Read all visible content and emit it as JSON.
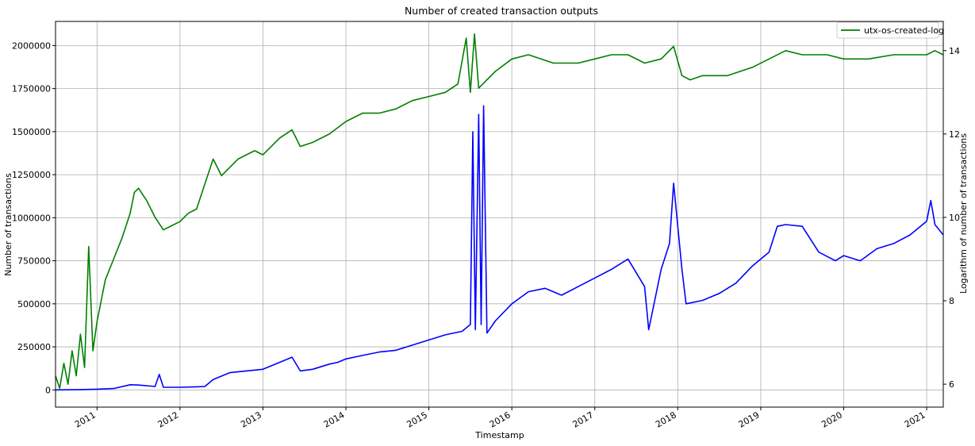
{
  "chart_data": {
    "type": "line",
    "title": "Number of created transaction outputs",
    "xlabel": "Timestamp",
    "ylabel": "Number of transactions",
    "ylabel_right": "Logarithm of number of transactions",
    "x_ticks": [
      "2011",
      "2012",
      "2013",
      "2014",
      "2015",
      "2016",
      "2017",
      "2018",
      "2019",
      "2020",
      "2021"
    ],
    "x_range": [
      2010.5,
      2021.2
    ],
    "y_left_ticks": [
      0,
      250000,
      500000,
      750000,
      1000000,
      1250000,
      1500000,
      1750000,
      2000000
    ],
    "y_left_range": [
      -100000,
      2140000
    ],
    "y_right_ticks": [
      6,
      8,
      10,
      12,
      14
    ],
    "y_right_range": [
      5.45,
      14.7
    ],
    "grid": true,
    "legend_position": "top-right",
    "series": [
      {
        "legend_label": "utx-os-created-log",
        "axis": "right",
        "color": "#008000",
        "x": [
          2010.5,
          2010.55,
          2010.6,
          2010.65,
          2010.7,
          2010.75,
          2010.8,
          2010.85,
          2010.9,
          2010.95,
          2011.0,
          2011.1,
          2011.2,
          2011.3,
          2011.4,
          2011.45,
          2011.5,
          2011.6,
          2011.7,
          2011.8,
          2011.9,
          2012.0,
          2012.1,
          2012.2,
          2012.3,
          2012.4,
          2012.5,
          2012.7,
          2012.9,
          2013.0,
          2013.2,
          2013.35,
          2013.45,
          2013.6,
          2013.8,
          2014.0,
          2014.2,
          2014.4,
          2014.6,
          2014.8,
          2015.0,
          2015.2,
          2015.35,
          2015.45,
          2015.5,
          2015.55,
          2015.6,
          2015.65,
          2015.8,
          2016.0,
          2016.2,
          2016.5,
          2016.8,
          2017.0,
          2017.2,
          2017.4,
          2017.6,
          2017.8,
          2017.95,
          2018.05,
          2018.15,
          2018.3,
          2018.6,
          2018.9,
          2019.1,
          2019.3,
          2019.5,
          2019.8,
          2020.0,
          2020.3,
          2020.6,
          2020.9,
          2021.0,
          2021.1,
          2021.2
        ],
        "y": [
          6.2,
          5.9,
          6.5,
          6.0,
          6.8,
          6.2,
          7.2,
          6.4,
          9.3,
          6.8,
          7.5,
          8.5,
          9.0,
          9.5,
          10.1,
          10.6,
          10.7,
          10.4,
          10.0,
          9.7,
          9.8,
          9.9,
          10.1,
          10.2,
          10.8,
          11.4,
          11.0,
          11.4,
          11.6,
          11.5,
          11.9,
          12.1,
          11.7,
          11.8,
          12.0,
          12.3,
          12.5,
          12.5,
          12.6,
          12.8,
          12.9,
          13.0,
          13.2,
          14.3,
          13.0,
          14.4,
          13.1,
          13.2,
          13.5,
          13.8,
          13.9,
          13.7,
          13.7,
          13.8,
          13.9,
          13.9,
          13.7,
          13.8,
          14.1,
          13.4,
          13.3,
          13.4,
          13.4,
          13.6,
          13.8,
          14.0,
          13.9,
          13.9,
          13.8,
          13.8,
          13.9,
          13.9,
          13.9,
          14.0,
          13.9
        ]
      },
      {
        "legend_label": "",
        "axis": "left",
        "color": "#0000ff",
        "x": [
          2010.5,
          2010.8,
          2011.0,
          2011.2,
          2011.4,
          2011.5,
          2011.7,
          2011.75,
          2011.8,
          2012.0,
          2012.2,
          2012.3,
          2012.4,
          2012.6,
          2012.8,
          2013.0,
          2013.2,
          2013.35,
          2013.45,
          2013.6,
          2013.8,
          2013.9,
          2014.0,
          2014.2,
          2014.4,
          2014.6,
          2014.8,
          2015.0,
          2015.2,
          2015.4,
          2015.5,
          2015.53,
          2015.56,
          2015.6,
          2015.63,
          2015.66,
          2015.7,
          2015.8,
          2016.0,
          2016.2,
          2016.4,
          2016.6,
          2016.8,
          2017.0,
          2017.2,
          2017.4,
          2017.6,
          2017.65,
          2017.8,
          2017.9,
          2017.95,
          2018.05,
          2018.1,
          2018.3,
          2018.5,
          2018.7,
          2018.9,
          2019.1,
          2019.2,
          2019.3,
          2019.5,
          2019.7,
          2019.9,
          2020.0,
          2020.2,
          2020.4,
          2020.6,
          2020.8,
          2021.0,
          2021.05,
          2021.1,
          2021.2
        ],
        "y": [
          0,
          2000,
          4000,
          8000,
          30000,
          28000,
          20000,
          90000,
          15000,
          15000,
          18000,
          20000,
          60000,
          100000,
          110000,
          120000,
          160000,
          190000,
          110000,
          120000,
          150000,
          160000,
          180000,
          200000,
          220000,
          230000,
          260000,
          290000,
          320000,
          340000,
          380000,
          1500000,
          350000,
          1600000,
          380000,
          1650000,
          330000,
          400000,
          500000,
          570000,
          590000,
          550000,
          600000,
          650000,
          700000,
          760000,
          600000,
          350000,
          700000,
          850000,
          1200000,
          700000,
          500000,
          520000,
          560000,
          620000,
          720000,
          800000,
          950000,
          960000,
          950000,
          800000,
          750000,
          780000,
          750000,
          820000,
          850000,
          900000,
          980000,
          1100000,
          960000,
          900000
        ]
      }
    ]
  }
}
